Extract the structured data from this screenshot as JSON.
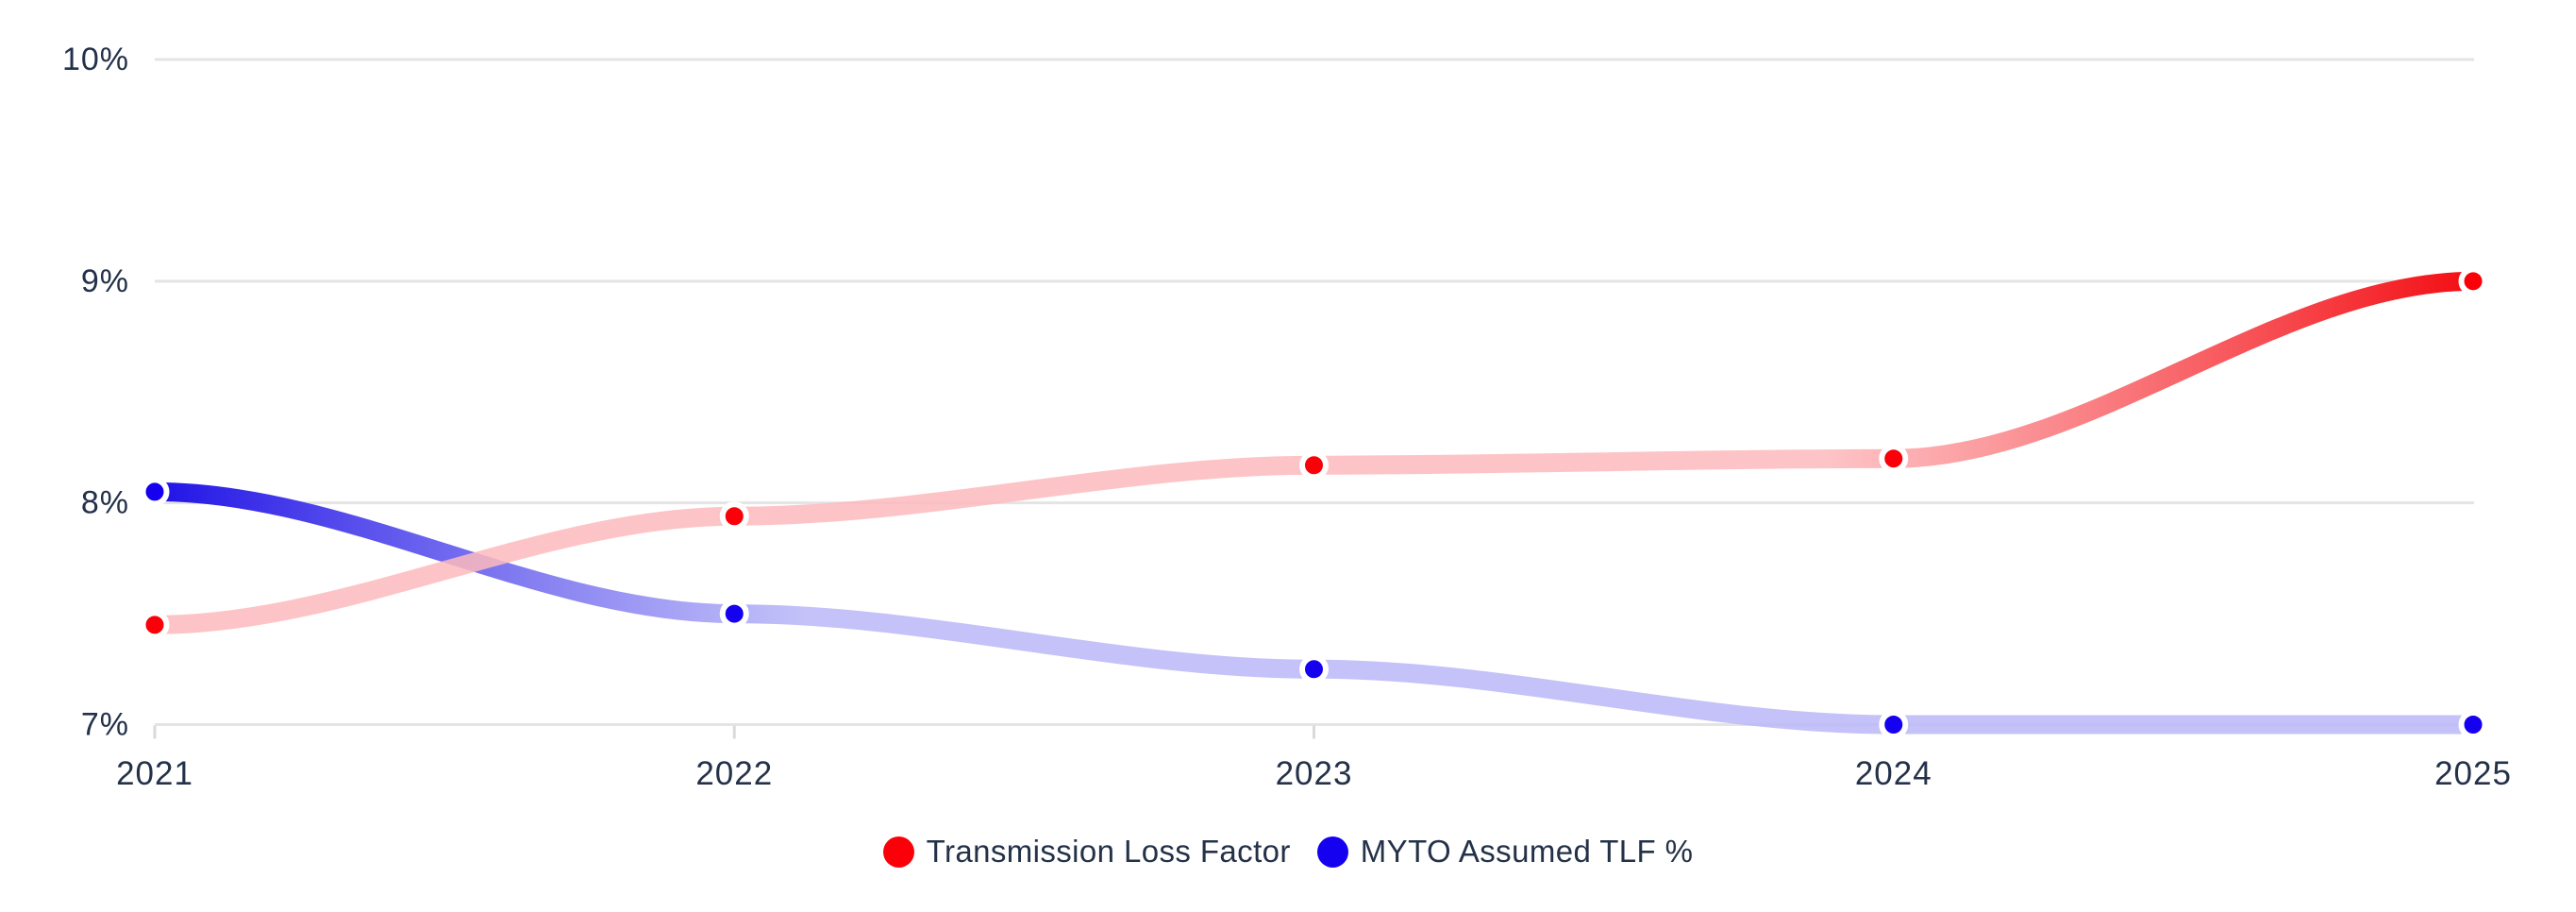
{
  "chart_data": {
    "type": "line",
    "title": "",
    "x": [
      2021,
      2022,
      2023,
      2024,
      2025
    ],
    "x_labels": [
      "2021",
      "2022",
      "2023",
      "2024",
      "2025"
    ],
    "y_ticks": [
      10,
      9,
      8,
      7
    ],
    "y_tick_labels": [
      "10%",
      "9%",
      "8%",
      "7%"
    ],
    "ylim": [
      7,
      10
    ],
    "ytick_suffix": "%",
    "grid": true,
    "legend_position": "bottom-center",
    "series": [
      {
        "name": "Transmission Loss Factor",
        "values": [
          7.45,
          7.94,
          8.17,
          8.2,
          9.0
        ],
        "dot_color": "#fb0008",
        "line_pale_color": "#fdbabd",
        "line_solid_color": "#f30d13",
        "solid_end": "right"
      },
      {
        "name": "MYTO Assumed TLF %",
        "values": [
          8.05,
          7.5,
          7.25,
          7.0,
          7.0
        ],
        "dot_color": "#1500f0",
        "line_pale_color": "#b9b7f7",
        "line_solid_color": "#2013e6",
        "solid_end": "left"
      }
    ],
    "colors": {
      "axis_text": "#233149",
      "gridline": "#e4e4e4",
      "tick": "#dadada",
      "background": "#ffffff"
    }
  }
}
